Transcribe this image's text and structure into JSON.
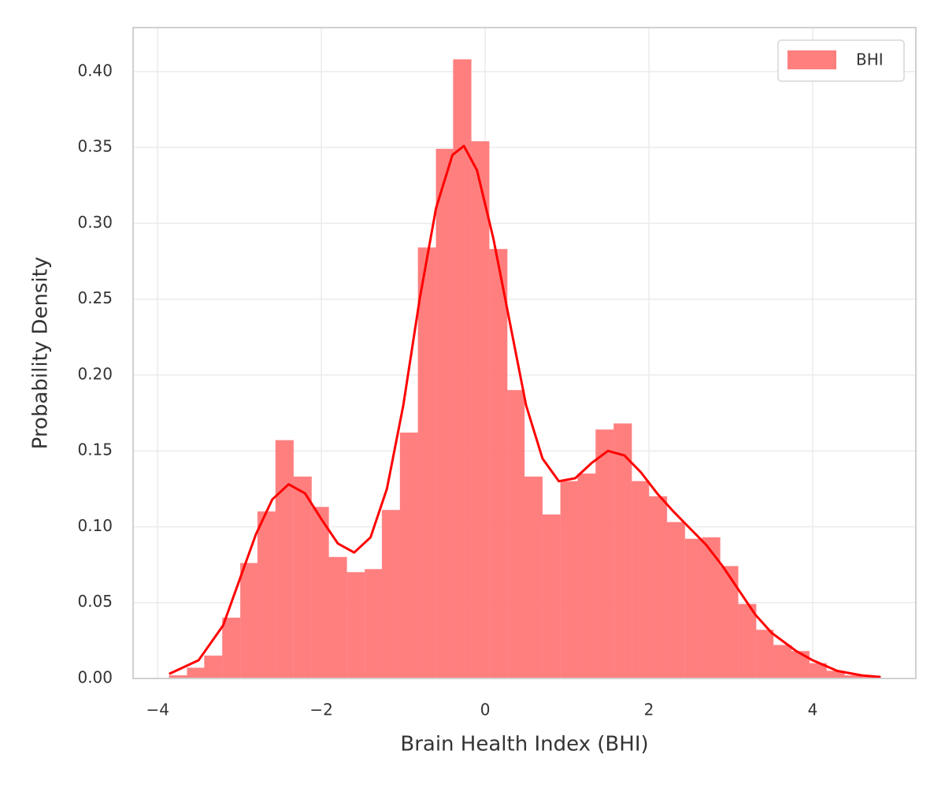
{
  "chart_data": {
    "type": "histogram",
    "xlabel": "Brain Health Index (BHI)",
    "ylabel": "Probability Density",
    "bins": [
      -3.86,
      -3.64,
      -3.43,
      -3.21,
      -2.99,
      -2.78,
      -2.56,
      -2.34,
      -2.12,
      -1.91,
      -1.69,
      -1.47,
      -1.26,
      -1.04,
      -0.82,
      -0.6,
      -0.39,
      -0.17,
      0.05,
      0.27,
      0.48,
      0.7,
      0.92,
      1.13,
      1.35,
      1.57,
      1.79,
      2.0,
      2.22,
      2.44,
      2.65,
      2.87,
      3.09,
      3.31,
      3.52,
      3.74,
      3.96,
      4.17,
      4.39,
      4.61,
      4.83
    ],
    "series": [
      {
        "name": "BHI",
        "color": "#ff7f7f",
        "values": [
          0.002,
          0.007,
          0.015,
          0.04,
          0.076,
          0.11,
          0.157,
          0.133,
          0.113,
          0.08,
          0.07,
          0.072,
          0.111,
          0.162,
          0.284,
          0.349,
          0.408,
          0.354,
          0.283,
          0.19,
          0.133,
          0.108,
          0.13,
          0.135,
          0.164,
          0.168,
          0.13,
          0.12,
          0.103,
          0.092,
          0.093,
          0.074,
          0.049,
          0.032,
          0.022,
          0.018,
          0.01,
          0.005,
          0.002,
          0.001
        ]
      }
    ],
    "lines": [
      {
        "color": "#ff0000",
        "x": [
          -3.86,
          -3.5,
          -3.2,
          -3.0,
          -2.8,
          -2.6,
          -2.4,
          -2.2,
          -2.0,
          -1.8,
          -1.6,
          -1.4,
          -1.2,
          -1.0,
          -0.8,
          -0.6,
          -0.4,
          -0.26,
          -0.1,
          0.1,
          0.3,
          0.5,
          0.7,
          0.9,
          1.1,
          1.3,
          1.5,
          1.7,
          1.9,
          2.1,
          2.3,
          2.5,
          2.7,
          2.9,
          3.1,
          3.3,
          3.5,
          3.8,
          4.0,
          4.3,
          4.6,
          4.83
        ],
        "values": [
          0.003,
          0.012,
          0.035,
          0.065,
          0.095,
          0.118,
          0.128,
          0.122,
          0.105,
          0.089,
          0.083,
          0.093,
          0.125,
          0.18,
          0.25,
          0.31,
          0.345,
          0.351,
          0.335,
          0.29,
          0.235,
          0.18,
          0.145,
          0.13,
          0.132,
          0.142,
          0.15,
          0.147,
          0.136,
          0.122,
          0.11,
          0.099,
          0.088,
          0.074,
          0.058,
          0.042,
          0.03,
          0.018,
          0.012,
          0.005,
          0.002,
          0.001
        ]
      }
    ],
    "xlim": [
      -4.3,
      5.26
    ],
    "ylim": [
      0,
      0.429
    ],
    "xticks": [
      {
        "value": -4,
        "label": "−4"
      },
      {
        "value": -2,
        "label": "−2"
      },
      0,
      2,
      4
    ],
    "yticks": [
      {
        "value": 0,
        "label": "0.00"
      },
      {
        "value": 0.05,
        "label": "0.05"
      },
      {
        "value": 0.1,
        "label": "0.10"
      },
      {
        "value": 0.15,
        "label": "0.15"
      },
      {
        "value": 0.2,
        "label": "0.20"
      },
      {
        "value": 0.25,
        "label": "0.25"
      },
      {
        "value": 0.3,
        "label": "0.30"
      },
      {
        "value": 0.35,
        "label": "0.35"
      },
      {
        "value": 0.4,
        "label": "0.40"
      }
    ],
    "grid": true,
    "legend": "upper right"
  }
}
